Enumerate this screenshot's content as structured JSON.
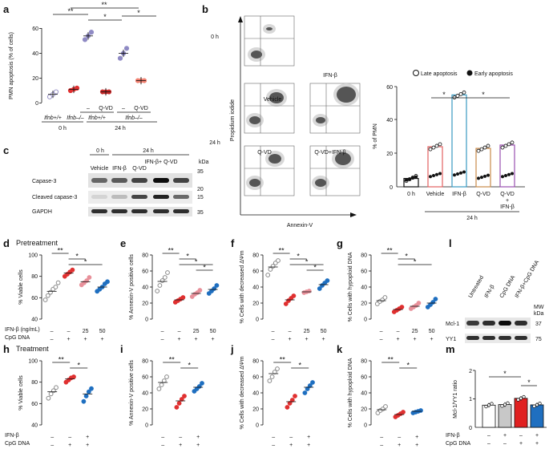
{
  "figure": {
    "panel_letters": [
      "a",
      "b",
      "c",
      "d",
      "e",
      "f",
      "g",
      "h",
      "i",
      "j",
      "k",
      "l",
      "m"
    ],
    "colors": {
      "ifnb_pp_0h": "#9b95c9",
      "ifnb_ko": "#e03030",
      "qvd_red": "#c62828",
      "light_purple": "#8f8ac4",
      "salmon": "#f08070",
      "grey": "#888888",
      "pink": "#e8909a",
      "blue": "#1f6fc0",
      "vehicle_bar": "#e26060",
      "ifnb_bar": "#3a9ac0",
      "qvd_bar": "#c88a4a",
      "combo_bar": "#9a50b0"
    }
  },
  "panel_a": {
    "ylabel": "PMN apoptosis (% of cells)",
    "ylim": [
      0,
      60
    ],
    "yticks": [
      "0",
      "20",
      "40",
      "60"
    ],
    "qvd_labels": [
      "–",
      "Q-VD",
      "–",
      "Q-VD"
    ],
    "genotype_labels": [
      "Ifnb+/+",
      "Ifnb–/–",
      "Ifnb+/+",
      "Ifnb–/–"
    ],
    "time_labels": [
      "0 h",
      "24 h"
    ],
    "sig": [
      "**",
      "**",
      "*",
      "*"
    ],
    "chart_data": {
      "type": "scatter",
      "groups": [
        {
          "name": "0h Ifnb+/+",
          "mean": 7,
          "points": [
            5,
            7,
            9
          ]
        },
        {
          "name": "0h Ifnb-/-",
          "mean": 11,
          "points": [
            10,
            11,
            12
          ]
        },
        {
          "name": "24h Ifnb+/+ -",
          "mean": 54,
          "points": [
            51,
            54,
            57
          ]
        },
        {
          "name": "24h Ifnb+/+ QVD",
          "mean": 9,
          "points": [
            9,
            9,
            9
          ]
        },
        {
          "name": "24h Ifnb-/- -",
          "mean": 40,
          "points": [
            36,
            40,
            44
          ]
        },
        {
          "name": "24h Ifnb-/- QVD",
          "mean": 18,
          "points": [
            18,
            18,
            18
          ]
        }
      ]
    }
  },
  "panel_b": {
    "flow_times": [
      "0 h",
      "24 h"
    ],
    "flow_labels": [
      "Vehicle",
      "IFN-β",
      "Q-VD",
      "Q-VD+IFN-β"
    ],
    "flow_xlabel": "Annexin-V",
    "flow_ylabel": "Propidium iodide",
    "legend": [
      "Late apoptosis",
      "Early apoptosis"
    ],
    "ylabel": "% of PMN",
    "yticks": [
      "0",
      "20",
      "40",
      "60"
    ],
    "categories": [
      "0 h",
      "Vehicle",
      "IFN-β",
      "Q-VD",
      "Q-VD",
      "+",
      "IFN-β"
    ],
    "xgroup": "24 h",
    "sig": [
      "*",
      "*"
    ],
    "chart_data": {
      "type": "bar",
      "categories": [
        "0 h",
        "Vehicle",
        "IFN-β",
        "Q-VD",
        "Q-VD+IFN-β"
      ],
      "series": [
        {
          "name": "Early apoptosis",
          "values": [
            5,
            7,
            8,
            6,
            7
          ]
        },
        {
          "name": "Late apoptosis",
          "values": [
            5,
            24,
            55,
            23,
            25
          ]
        }
      ],
      "ylim": [
        0,
        60
      ]
    }
  },
  "panel_c": {
    "times": [
      "0 h",
      "24 h"
    ],
    "lanes": [
      "Vehicle",
      "IFN-β",
      "Q-VD",
      "IFN-β+ Q-VD"
    ],
    "rows": [
      "Capase-3",
      "Cleaved capase-3",
      "GAPDH"
    ],
    "kda": "kDa",
    "markers": [
      "35",
      "20",
      "15",
      "35"
    ]
  },
  "section_titles": {
    "pretreatment": "Pretreatment",
    "treatment": "Treatment"
  },
  "row_d": {
    "ifn_label": "IFN-β (ng/mL)",
    "cpg_label": "CpG DNA",
    "ifn_values": [
      "–",
      "–",
      "25",
      "50"
    ],
    "cpg_values": [
      "–",
      "+",
      "+",
      "+"
    ]
  },
  "row_h": {
    "ifn_label": "IFN-β",
    "cpg_label": "CpG DNA",
    "ifn_values": [
      "–",
      "–",
      "+"
    ],
    "cpg_values": [
      "–",
      "+",
      "+"
    ]
  },
  "panel_d": {
    "ylabel": "% Viable cells",
    "yticks": [
      "40",
      "60",
      "80",
      "100"
    ],
    "ylim": [
      40,
      100
    ],
    "sig": [
      "**",
      "*",
      "*"
    ],
    "chart_data": {
      "type": "scatter",
      "groups": [
        {
          "mean": 66,
          "points": [
            58,
            62,
            65,
            68,
            70,
            74
          ]
        },
        {
          "mean": 83,
          "points": [
            80,
            82,
            84,
            86
          ]
        },
        {
          "mean": 75,
          "points": [
            72,
            74,
            76,
            79
          ]
        },
        {
          "mean": 70,
          "points": [
            66,
            68,
            70,
            73,
            75
          ]
        }
      ]
    }
  },
  "panel_e": {
    "ylabel": "% Annexin-V positive cells",
    "yticks": [
      "0",
      "20",
      "40",
      "60",
      "80"
    ],
    "ylim": [
      0,
      80
    ],
    "sig": [
      "**",
      "*",
      "*",
      "*"
    ],
    "chart_data": {
      "type": "scatter",
      "groups": [
        {
          "mean": 47,
          "points": [
            35,
            42,
            48,
            52,
            58
          ]
        },
        {
          "mean": 24,
          "points": [
            21,
            23,
            25,
            27
          ]
        },
        {
          "mean": 32,
          "points": [
            28,
            31,
            33,
            36
          ]
        },
        {
          "mean": 37,
          "points": [
            32,
            35,
            38,
            42
          ]
        }
      ]
    }
  },
  "panel_f": {
    "ylabel": "% Cells with decreased ΔΨm",
    "yticks": [
      "0",
      "20",
      "40",
      "60",
      "80"
    ],
    "ylim": [
      0,
      80
    ],
    "sig": [
      "**",
      "*",
      "*",
      "*"
    ],
    "chart_data": {
      "type": "scatter",
      "groups": [
        {
          "mean": 65,
          "points": [
            55,
            62,
            66,
            70,
            73
          ]
        },
        {
          "mean": 24,
          "points": [
            19,
            23,
            26,
            29
          ]
        },
        {
          "mean": 34,
          "points": [
            33,
            34,
            35
          ]
        },
        {
          "mean": 43,
          "points": [
            38,
            42,
            45,
            48
          ]
        }
      ]
    }
  },
  "panel_g": {
    "ylabel": "% Cells with hypoploid DNA",
    "yticks": [
      "0",
      "20",
      "40",
      "60",
      "80"
    ],
    "ylim": [
      0,
      80
    ],
    "sig": [
      "**",
      "*",
      "*"
    ],
    "chart_data": {
      "type": "scatter",
      "groups": [
        {
          "mean": 23,
          "points": [
            19,
            22,
            24,
            27
          ]
        },
        {
          "mean": 12,
          "points": [
            9,
            11,
            13,
            15
          ]
        },
        {
          "mean": 16,
          "points": [
            13,
            15,
            17,
            20
          ]
        },
        {
          "mean": 20,
          "points": [
            15,
            18,
            21,
            25
          ]
        }
      ]
    }
  },
  "panel_h": {
    "ylabel": "% Viable cells",
    "yticks": [
      "40",
      "60",
      "80",
      "100"
    ],
    "ylim": [
      40,
      100
    ],
    "sig": [
      "**",
      "*"
    ],
    "chart_data": {
      "type": "scatter",
      "groups": [
        {
          "mean": 71,
          "points": [
            65,
            69,
            72,
            75
          ]
        },
        {
          "mean": 83,
          "points": [
            80,
            82,
            84,
            85
          ]
        },
        {
          "mean": 69,
          "points": [
            62,
            67,
            71,
            74
          ]
        }
      ]
    }
  },
  "panel_i": {
    "ylabel": "% Annexin-V positive cells",
    "yticks": [
      "0",
      "20",
      "40",
      "60",
      "80"
    ],
    "ylim": [
      0,
      80
    ],
    "sig": [
      "**",
      "*"
    ],
    "chart_data": {
      "type": "scatter",
      "groups": [
        {
          "mean": 53,
          "points": [
            45,
            50,
            55,
            60
          ]
        },
        {
          "mean": 30,
          "points": [
            22,
            27,
            32,
            36
          ]
        },
        {
          "mean": 47,
          "points": [
            42,
            45,
            48,
            52
          ]
        }
      ]
    }
  },
  "panel_j": {
    "ylabel": "% Cells with decreased ΔΨm",
    "yticks": [
      "0",
      "20",
      "40",
      "60",
      "80"
    ],
    "ylim": [
      0,
      80
    ],
    "sig": [
      "**",
      "*"
    ],
    "chart_data": {
      "type": "scatter",
      "groups": [
        {
          "mean": 64,
          "points": [
            55,
            60,
            66,
            70
          ]
        },
        {
          "mean": 29,
          "points": [
            22,
            27,
            31,
            36
          ]
        },
        {
          "mean": 47,
          "points": [
            40,
            45,
            49,
            53
          ]
        }
      ]
    }
  },
  "panel_k": {
    "ylabel": "% Cells with hypoploid DNA",
    "yticks": [
      "0",
      "20",
      "40",
      "60",
      "80"
    ],
    "ylim": [
      0,
      80
    ],
    "sig": [
      "**",
      "*"
    ],
    "chart_data": {
      "type": "scatter",
      "groups": [
        {
          "mean": 19,
          "points": [
            15,
            18,
            20,
            23
          ]
        },
        {
          "mean": 13,
          "points": [
            10,
            12,
            14,
            16
          ]
        },
        {
          "mean": 17,
          "points": [
            15,
            16,
            17,
            18
          ]
        }
      ]
    }
  },
  "panel_l": {
    "lanes": [
      "Untreated",
      "IFN-β",
      "CpG DNA",
      "IFN-β+CpG DNA"
    ],
    "rows": [
      "Mcl-1",
      "YY1"
    ],
    "mw": "MW",
    "kda": "kDa",
    "markers": [
      "37",
      "75"
    ]
  },
  "panel_m": {
    "ylabel": "Mcl-1/YY1 ratio",
    "yticks": [
      "0",
      "1",
      "2"
    ],
    "ylim": [
      0,
      2
    ],
    "ifn_label": "IFN-β",
    "cpg_label": "CpG DNA",
    "ifn_values": [
      "–",
      "+",
      "–",
      "+"
    ],
    "cpg_values": [
      "–",
      "–",
      "+",
      "+"
    ],
    "sig": [
      "*",
      "*"
    ],
    "chart_data": {
      "type": "bar",
      "categories": [
        "Untreated",
        "IFN-β",
        "CpG DNA",
        "IFN-β+CpG DNA"
      ],
      "values": [
        0.78,
        0.8,
        1.02,
        0.79
      ],
      "ylim": [
        0,
        2
      ]
    }
  }
}
